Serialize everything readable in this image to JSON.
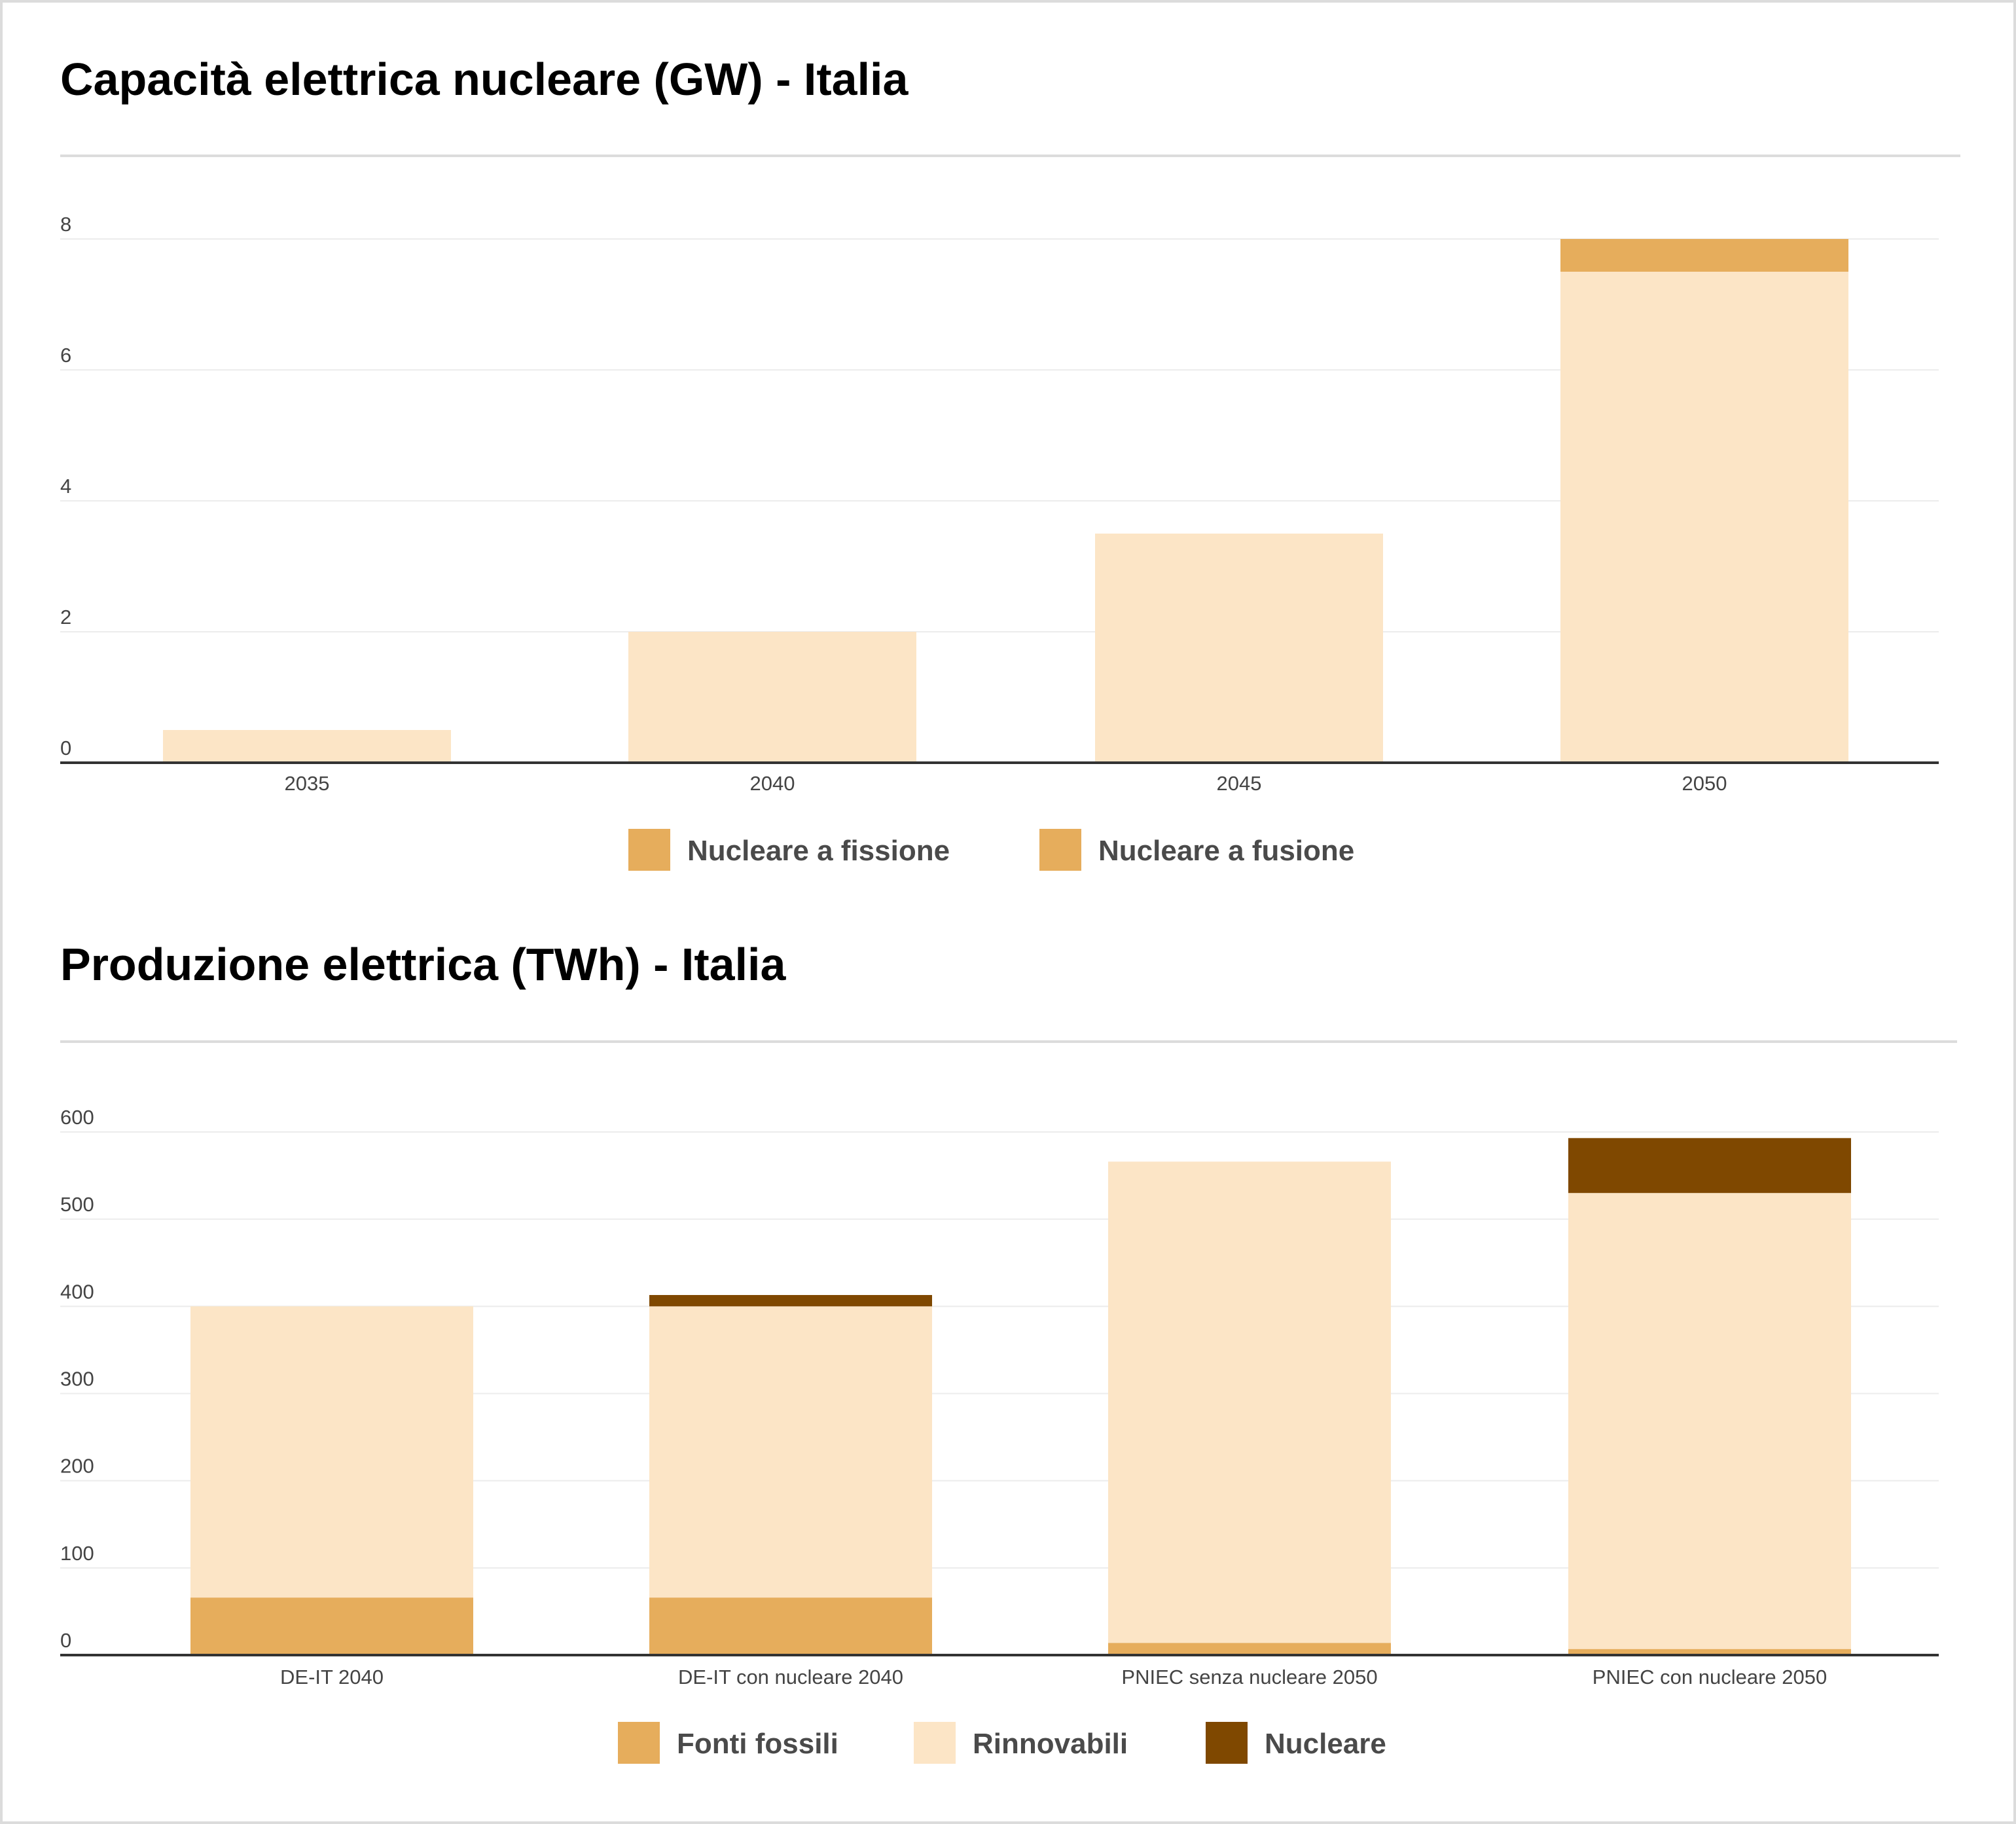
{
  "chart_data": [
    {
      "type": "bar",
      "stacked": true,
      "title": "Capacità elettrica nucleare (GW) - Italia",
      "xlabel": "",
      "ylabel": "",
      "categories": [
        "2035",
        "2040",
        "2045",
        "2050"
      ],
      "series": [
        {
          "name": "Nucleare a fissione",
          "values": [
            0.5,
            2,
            3.5,
            7.5
          ],
          "color": "#fce5c6",
          "legend_color": "#e6ad5c"
        },
        {
          "name": "Nucleare a fusione",
          "values": [
            0,
            0,
            0,
            0.5
          ],
          "color": "#e6ad5c",
          "legend_color": "#e6ad5c"
        }
      ],
      "ylim": [
        0,
        8
      ],
      "yticks": [
        "0",
        "2",
        "4",
        "6",
        "8"
      ],
      "grid": true,
      "legend_position": "bottom-center"
    },
    {
      "type": "bar",
      "stacked": true,
      "title": "Produzione elettrica (TWh) - Italia",
      "xlabel": "",
      "ylabel": "",
      "categories": [
        "DE-IT 2040",
        "DE-IT con nucleare 2040",
        "PNIEC senza nucleare 2050",
        "PNIEC con nucleare 2050"
      ],
      "series": [
        {
          "name": "Fonti fossili",
          "values": [
            66,
            66,
            14,
            7
          ],
          "color": "#e6ad5c",
          "legend_color": "#e6ad5c"
        },
        {
          "name": "Rinnovabili",
          "values": [
            334,
            334,
            552,
            523
          ],
          "color": "#fce5c6",
          "legend_color": "#fce5c6"
        },
        {
          "name": "Nucleare",
          "values": [
            0,
            13,
            0,
            63
          ],
          "color": "#7f4800",
          "legend_color": "#7f4800"
        }
      ],
      "ylim": [
        0,
        600
      ],
      "yticks": [
        "0",
        "100",
        "200",
        "300",
        "400",
        "500",
        "600"
      ],
      "grid": true,
      "legend_position": "bottom-center"
    }
  ]
}
